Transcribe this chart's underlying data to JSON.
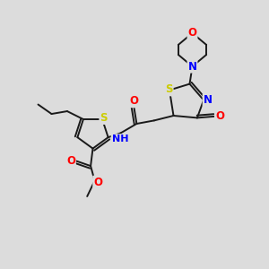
{
  "background_color": "#dcdcdc",
  "bond_color": "#1a1a1a",
  "figsize": [
    3.0,
    3.0
  ],
  "dpi": 100,
  "atom_colors": {
    "S": "#cccc00",
    "N": "#0000ff",
    "O": "#ff0000",
    "C": "#1a1a1a",
    "H": "#1a1a1a"
  },
  "xlim": [
    0,
    10
  ],
  "ylim": [
    0,
    10
  ],
  "bond_lw": 1.4,
  "font_size_atoms": 8.5
}
